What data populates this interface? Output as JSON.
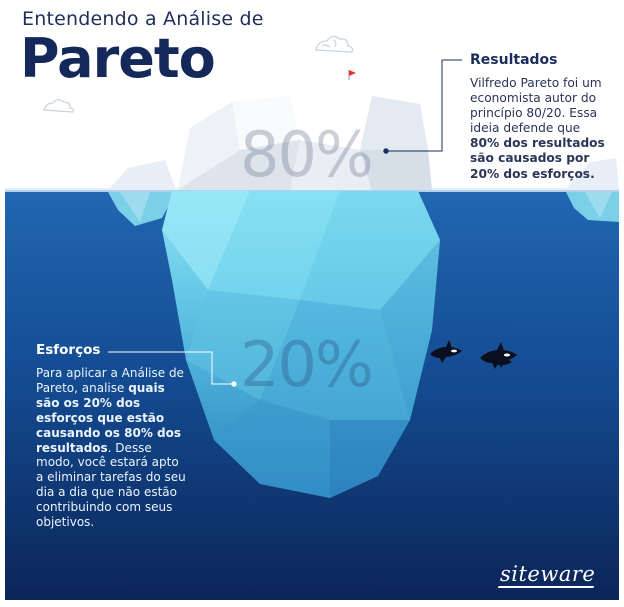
{
  "header": {
    "subtitle": "Entendendo a Análise de",
    "title": "Pareto"
  },
  "above_water": {
    "percent": "80%",
    "heading": "Resultados",
    "text_before": "Vilfredo Pareto foi um economista autor do princípio 80/20. Essa ideia defende que ",
    "text_bold": "80% dos resultados são causados por 20% dos esforços."
  },
  "below_water": {
    "percent": "20%",
    "heading": "Esforços",
    "text_before": "Para aplicar a Análise de Pareto, analise ",
    "text_bold": "quais são os 20% dos esforços que estão causando os 80% dos resultados",
    "text_after": ". Desse modo, você estará apto a eliminar tarefas do seu dia a dia que não estão contribuindo com seus objetivos."
  },
  "logo": "siteware",
  "icons": [
    "cloud-icon",
    "flag-icon",
    "orca-icon"
  ],
  "colors": {
    "ocean_top": "#1f5fa8",
    "ocean_bottom": "#0c2a5c",
    "iceberg": "#7fd6ee",
    "title": "#14285a"
  }
}
